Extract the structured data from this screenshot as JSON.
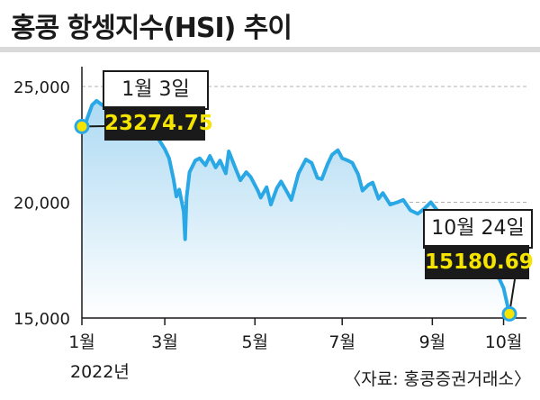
{
  "title": "홍콩 항셍지수(HSI) 추이",
  "year_label": "2022년",
  "source": "〈자료: 홍콩증권거래소〉",
  "colors": {
    "line": "#2aa8e6",
    "fill_top": "#a9d8f2",
    "fill_bottom": "#ffffff",
    "marker": "#f5e400",
    "value_box": "#1a1a1a",
    "value_text": "#f5e400",
    "gridline": "#b0b0b0"
  },
  "chart_data": {
    "type": "area",
    "title": "홍콩 항셍지수(HSI) 추이",
    "xlabel": "",
    "ylabel": "",
    "x_ticks": [
      "1월",
      "3월",
      "5월",
      "7월",
      "9월",
      "10월"
    ],
    "y_ticks": [
      "15,000",
      "20,000",
      "25,000"
    ],
    "ylim": [
      15000,
      25000
    ],
    "grid": "dashed horizontal",
    "series": [
      {
        "x": [
          "2022-01-03",
          "2022-01-06",
          "2022-01-10",
          "2022-01-13",
          "2022-01-17",
          "2022-01-20",
          "2022-01-24",
          "2022-01-27",
          "2022-02-01",
          "2022-02-04",
          "2022-02-08",
          "2022-02-11",
          "2022-02-15",
          "2022-02-18",
          "2022-02-22",
          "2022-02-25",
          "2022-03-01",
          "2022-03-04",
          "2022-03-07",
          "2022-03-09",
          "2022-03-11",
          "2022-03-14",
          "2022-03-15",
          "2022-03-16",
          "2022-03-18",
          "2022-03-22",
          "2022-03-25",
          "2022-03-29",
          "2022-04-01",
          "2022-04-05",
          "2022-04-08",
          "2022-04-12",
          "2022-04-14",
          "2022-04-19",
          "2022-04-22",
          "2022-04-26",
          "2022-04-29",
          "2022-05-04",
          "2022-05-06",
          "2022-05-10",
          "2022-05-13",
          "2022-05-17",
          "2022-05-20",
          "2022-05-24",
          "2022-05-27",
          "2022-06-01",
          "2022-06-06",
          "2022-06-10",
          "2022-06-14",
          "2022-06-17",
          "2022-06-21",
          "2022-06-24",
          "2022-06-28",
          "2022-07-01",
          "2022-07-05",
          "2022-07-08",
          "2022-07-12",
          "2022-07-15",
          "2022-07-19",
          "2022-07-22",
          "2022-07-26",
          "2022-07-29",
          "2022-08-03",
          "2022-08-08",
          "2022-08-12",
          "2022-08-17",
          "2022-08-22",
          "2022-08-26",
          "2022-08-31",
          "2022-09-05",
          "2022-09-09",
          "2022-09-14",
          "2022-09-19",
          "2022-09-23",
          "2022-09-28",
          "2022-10-03",
          "2022-10-07",
          "2022-10-12",
          "2022-10-17",
          "2022-10-20",
          "2022-10-24"
        ],
        "values": [
          23274.75,
          23500,
          24200,
          24380,
          24200,
          24300,
          24150,
          23700,
          23850,
          24200,
          24400,
          24800,
          24600,
          24550,
          23500,
          22700,
          22300,
          21900,
          21000,
          20250,
          20550,
          19600,
          18400,
          20200,
          21300,
          21800,
          21900,
          21600,
          22000,
          21500,
          21800,
          21250,
          22200,
          21400,
          20950,
          21300,
          21100,
          20500,
          20200,
          20650,
          19900,
          20600,
          20900,
          20450,
          20100,
          21250,
          21850,
          21700,
          21050,
          21000,
          21650,
          22050,
          22250,
          21900,
          21800,
          21700,
          21200,
          20500,
          20750,
          20850,
          20150,
          20400,
          19900,
          20000,
          20100,
          19650,
          19500,
          19700,
          20000,
          19600,
          19400,
          18900,
          18600,
          18100,
          17500,
          17200,
          17600,
          16900,
          16700,
          16300,
          15180.69
        ]
      }
    ],
    "annotations": [
      {
        "date": "1월 3일",
        "value": "23274.75"
      },
      {
        "date": "10월 24일",
        "value": "15180.69"
      }
    ]
  }
}
